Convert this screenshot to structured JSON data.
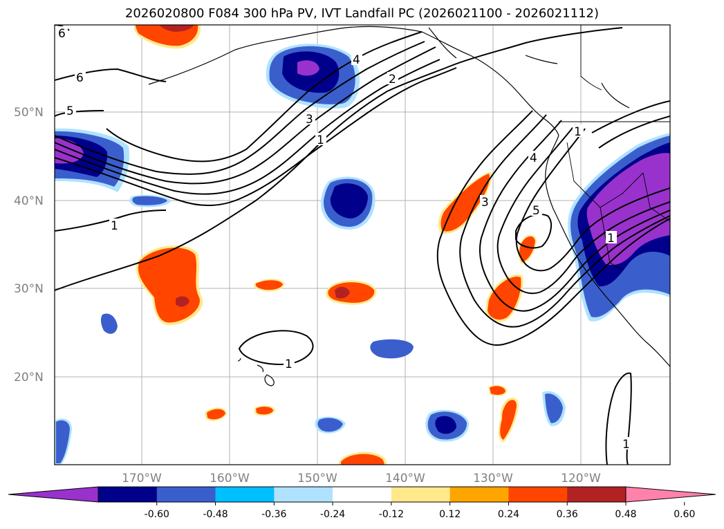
{
  "title": "2026020800 F084 300 hPa PV, IVT Landfall PC (2026021100 - 2026021112)",
  "lat_labels": [
    "50°N",
    "40°N",
    "30°N",
    "20°N"
  ],
  "lon_labels": [
    "170°W",
    "160°W",
    "150°W",
    "140°W",
    "130°W",
    "120°W"
  ],
  "colorbar": {
    "ticks": [
      "-0.60",
      "-0.48",
      "-0.36",
      "-0.24",
      "-0.12",
      "0.12",
      "0.24",
      "0.36",
      "0.48",
      "0.60"
    ],
    "colors": [
      "#9932CC",
      "#00008B",
      "#3A5FCD",
      "#00BFFF",
      "#B0E2FF",
      "#FFFFFF",
      "#FFE98A",
      "#FFA500",
      "#FF4500",
      "#B22222",
      "#FF82AB"
    ]
  },
  "contour_labels": [
    "6",
    "6",
    "5",
    "4",
    "3",
    "2",
    "1",
    "1",
    "1",
    "1",
    "3",
    "4",
    "5",
    "1",
    "1"
  ]
}
